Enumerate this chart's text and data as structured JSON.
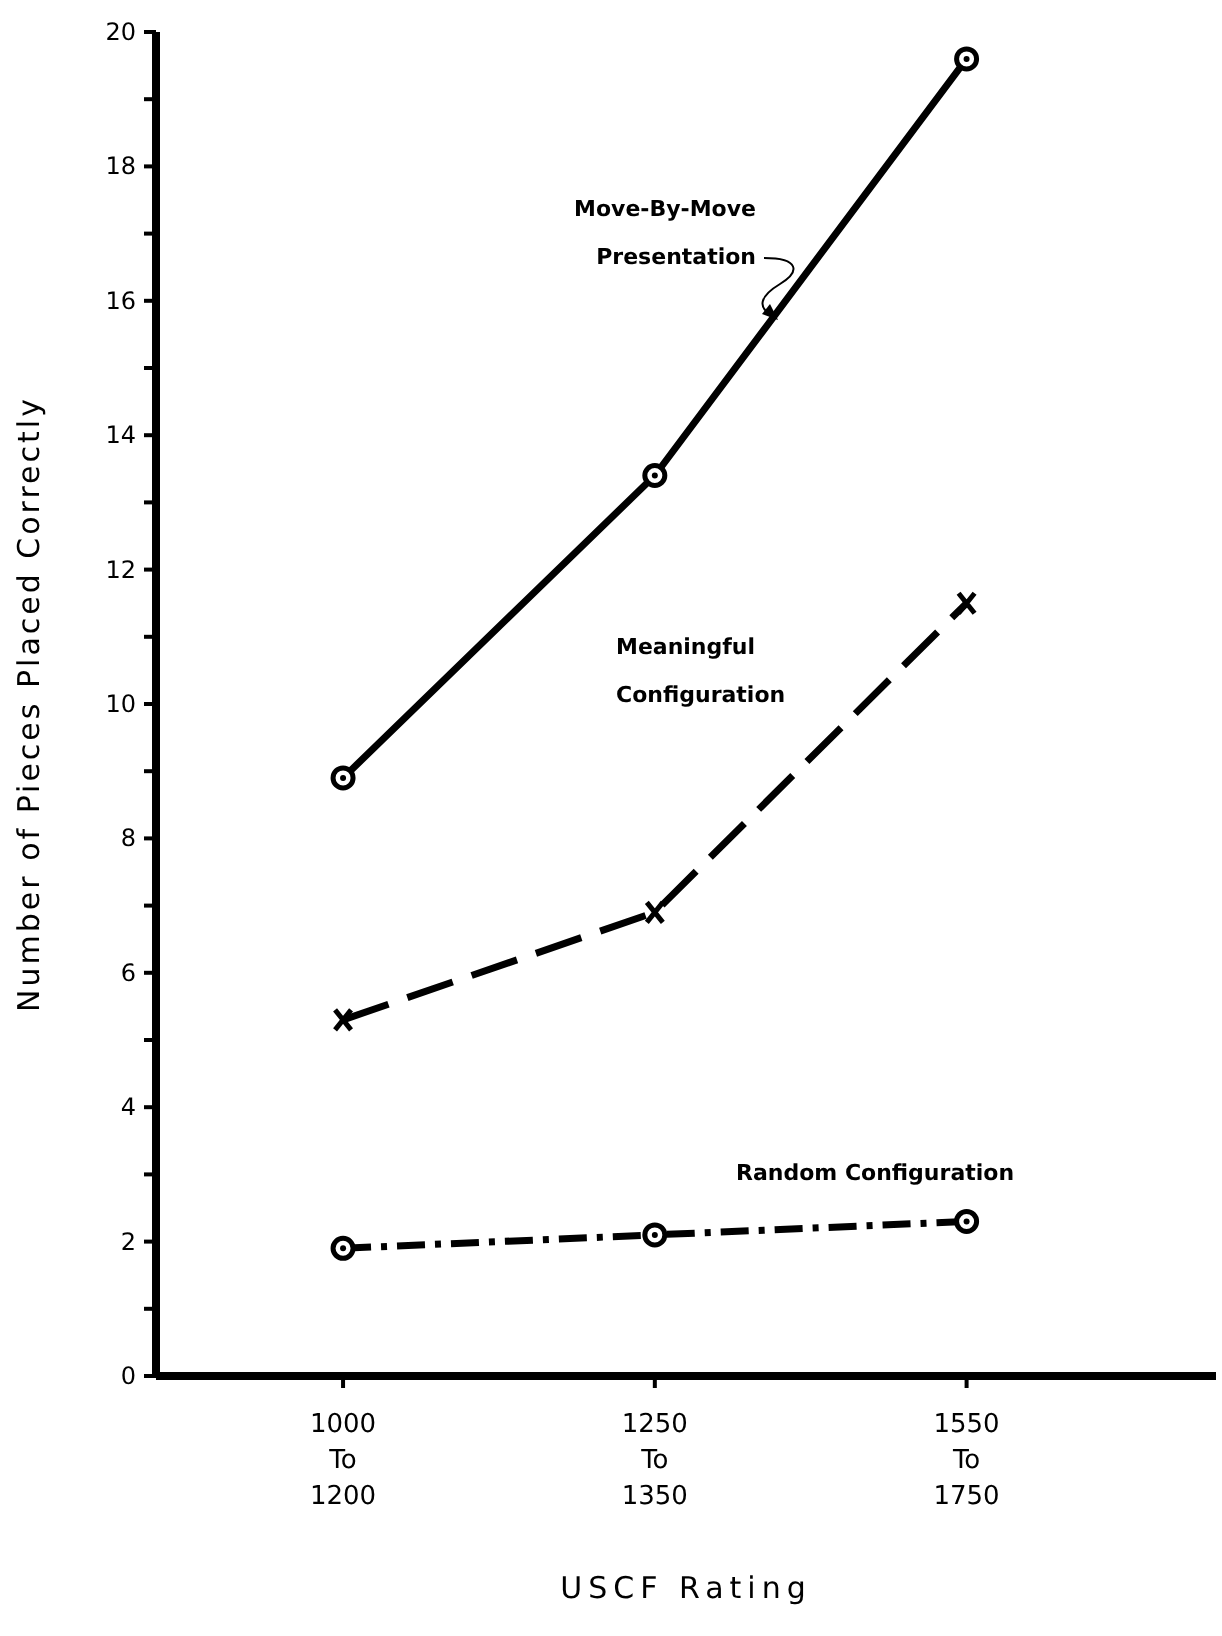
{
  "chart_data": {
    "type": "line",
    "xlabel": "USCF Rating",
    "ylabel": "Number of Pieces Placed Correctly",
    "categories": [
      "1000\nTo\n1200",
      "1250\nTo\n1350",
      "1550\nTo\n1750"
    ],
    "ylim": [
      0,
      20
    ],
    "yticks": [
      0,
      {
        "value": 1,
        "label": null
      },
      2,
      {
        "value": 3,
        "label": null
      },
      4,
      {
        "value": 5,
        "label": null
      },
      6,
      {
        "value": 7,
        "label": null
      },
      8,
      {
        "value": 9,
        "label": null
      },
      10,
      {
        "value": 11,
        "label": null
      },
      12,
      {
        "value": 13,
        "label": null
      },
      14,
      {
        "value": 15,
        "label": null
      },
      16,
      {
        "value": 17,
        "label": null
      },
      18,
      {
        "value": 19,
        "label": null
      },
      20
    ],
    "series": [
      {
        "name": "Move-By-Move Presentation",
        "color": "#000000",
        "values": [
          8.9,
          13.4,
          19.6
        ],
        "marker": "circle",
        "line_style": "solid"
      },
      {
        "name": "Meaningful Configuration",
        "color": "#000000",
        "values": [
          5.3,
          6.9,
          11.5
        ],
        "marker": "cross",
        "line_style": "dashed"
      },
      {
        "name": "Random Configuration",
        "color": "#000000",
        "values": [
          1.9,
          2.1,
          2.3
        ],
        "marker": "circle",
        "line_style": "dotted"
      }
    ],
    "grid": false,
    "legend": false
  }
}
